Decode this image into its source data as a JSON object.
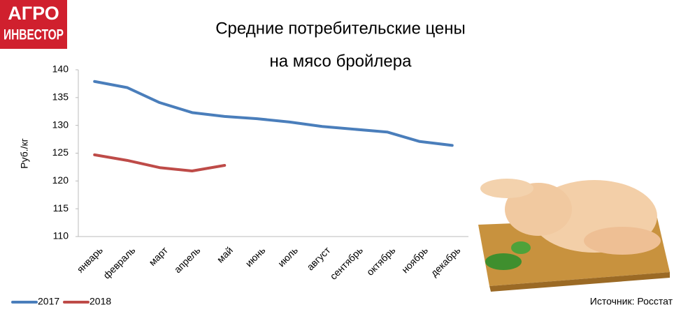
{
  "logo": [
    "АГРО",
    "ИНВЕСТОР"
  ],
  "chart_data": {
    "type": "line",
    "title": [
      "Средние потребительские цены",
      "на мясо бройлера"
    ],
    "y_label": "Руб./кг",
    "source": "Источник: Росстат",
    "categories": [
      "январь",
      "февраль",
      "март",
      "апрель",
      "май",
      "июнь",
      "июль",
      "август",
      "сентябрь",
      "октябрь",
      "ноябрь",
      "декабрь"
    ],
    "series": [
      {
        "name": "2017",
        "color": "#4a7ebb",
        "values": [
          137.9,
          136.8,
          134.1,
          132.3,
          131.6,
          131.2,
          130.6,
          129.8,
          129.3,
          128.8,
          127.1,
          126.4
        ]
      },
      {
        "name": "2018",
        "color": "#be4b48",
        "values": [
          124.7,
          123.7,
          122.4,
          121.8,
          122.8,
          null,
          null,
          null,
          null,
          null,
          null,
          null
        ]
      }
    ],
    "ylim": [
      110,
      140
    ],
    "yticks": [
      110,
      115,
      120,
      125,
      130,
      135,
      140
    ],
    "grid": false,
    "legend": "bottom-left"
  }
}
